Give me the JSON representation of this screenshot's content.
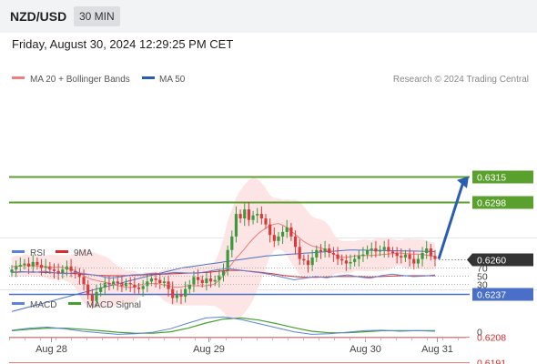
{
  "header": {
    "symbol": "NZD/USD",
    "timeframe": "30 MIN"
  },
  "datetime": "Friday, August 30, 2024 12:29:25 PM CET",
  "legend": {
    "bb_label": "MA 20 + Bollinger Bands",
    "ma50_label": "MA 50",
    "credit": "Research © 2024 Trading Central"
  },
  "colors": {
    "candle_up": "#3c9a3c",
    "candle_down": "#d93a3a",
    "ma20": "#ef7d7d",
    "ma50": "#4a6fc9",
    "band_fill": "#fde2e2",
    "target_line": "#5aa02c",
    "pivot_line": "#4a6fc9",
    "support_line": "#ef7d7d",
    "price_tag": "#333333",
    "arrow": "#2a5db0",
    "rsi": "#5b84d9",
    "rsi_ma": "#d92b2b",
    "macd": "#5b84d9",
    "macd_signal": "#45a12b"
  },
  "chart_data": [
    {
      "type": "candlestick",
      "title": "NZD/USD 30 MIN",
      "x_ticks": [
        "Aug 28",
        "Aug 29",
        "Aug 30",
        "Aug 31"
      ],
      "ylim": [
        0.618,
        0.633
      ],
      "levels": [
        {
          "value": 0.6315,
          "label": "0.6315",
          "kind": "target"
        },
        {
          "value": 0.6298,
          "label": "0.6298",
          "kind": "target"
        },
        {
          "value": 0.626,
          "label": "0.6260",
          "kind": "last_price"
        },
        {
          "value": 0.6237,
          "label": "0.6237",
          "kind": "pivot"
        },
        {
          "value": 0.6208,
          "label": "0.6208",
          "kind": "support"
        },
        {
          "value": 0.6191,
          "label": "0.6191",
          "kind": "support"
        }
      ],
      "arrow": {
        "from": 0.626,
        "to": 0.6315,
        "direction": "up"
      },
      "series": [
        {
          "name": "Candles",
          "values": [
            0.6253,
            0.6255,
            0.6256,
            0.6257,
            0.6255,
            0.6258,
            0.6256,
            0.6254,
            0.6255,
            0.6253,
            0.6252,
            0.625,
            0.6253,
            0.6255,
            0.6252,
            0.625,
            0.6248,
            0.6243,
            0.6236,
            0.6232,
            0.6238,
            0.6241,
            0.6244,
            0.6243,
            0.6245,
            0.6244,
            0.6242,
            0.6244,
            0.6243,
            0.6241,
            0.624,
            0.6242,
            0.6245,
            0.6247,
            0.6246,
            0.6244,
            0.6245,
            0.624,
            0.6234,
            0.6236,
            0.6235,
            0.624,
            0.6243,
            0.6248,
            0.6246,
            0.6244,
            0.6247,
            0.6245,
            0.6246,
            0.6249,
            0.6252,
            0.6266,
            0.6275,
            0.629,
            0.6287,
            0.6293,
            0.6286,
            0.6289,
            0.629,
            0.6287,
            0.6283,
            0.6276,
            0.6272,
            0.6275,
            0.6278,
            0.6281,
            0.6275,
            0.6268,
            0.626,
            0.6259,
            0.6256,
            0.6261,
            0.6266,
            0.6265,
            0.6267,
            0.6264,
            0.6263,
            0.626,
            0.6259,
            0.6257,
            0.6258,
            0.626,
            0.6262,
            0.6263,
            0.6266,
            0.6267,
            0.6265,
            0.6266,
            0.6268,
            0.6265,
            0.6264,
            0.6262,
            0.6261,
            0.6263,
            0.626,
            0.6257,
            0.626,
            0.6264,
            0.6267,
            0.6262,
            0.626
          ]
        },
        {
          "name": "MA 20",
          "values": [
            0.6248,
            0.626,
            0.627,
            0.6268,
            0.6266,
            0.6262
          ]
        },
        {
          "name": "MA 50",
          "values": [
            0.6225,
            0.624,
            0.6254,
            0.6262,
            0.6266,
            0.6265
          ]
        }
      ]
    },
    {
      "type": "line",
      "title": "RSI",
      "ylim": [
        0,
        100
      ],
      "y_ticks": [
        70,
        50,
        30
      ],
      "series": [
        {
          "name": "RSI",
          "values": [
            59,
            60,
            58,
            61,
            57,
            55,
            58,
            54,
            50,
            44,
            47,
            52,
            53,
            56,
            55,
            58,
            57,
            56,
            60,
            65,
            67,
            64,
            60,
            57,
            52,
            46,
            40,
            44,
            48,
            45,
            49,
            52,
            47,
            44,
            50,
            54,
            51,
            48,
            49,
            52
          ]
        },
        {
          "name": "9MA",
          "values": [
            58,
            59,
            59,
            58,
            57,
            56,
            55,
            53,
            51,
            50,
            50,
            51,
            52,
            53,
            54,
            55,
            56,
            57,
            58,
            61,
            63,
            63,
            61,
            58,
            55,
            51,
            48,
            46,
            46,
            47,
            48,
            48,
            48,
            47,
            48,
            49,
            50,
            50,
            50,
            50
          ]
        }
      ]
    },
    {
      "type": "line",
      "title": "MACD",
      "y_ticks": [
        0
      ],
      "series": [
        {
          "name": "MACD",
          "values": [
            0.2,
            0.6,
            0.8,
            0.5,
            0.0,
            -0.3,
            -0.6,
            -0.5,
            -0.2,
            0.5,
            1.6,
            2.6,
            2.8,
            2.3,
            1.5,
            0.7,
            -0.1,
            -0.6,
            -0.5,
            -0.2,
            0.1,
            0.2,
            0.0,
            0.1,
            0.0
          ]
        },
        {
          "name": "MACD Signal",
          "values": [
            0.1,
            0.4,
            0.6,
            0.6,
            0.4,
            0.1,
            -0.2,
            -0.4,
            -0.4,
            -0.1,
            0.6,
            1.6,
            2.4,
            2.6,
            2.2,
            1.5,
            0.7,
            0.0,
            -0.3,
            -0.3,
            -0.1,
            0.1,
            0.1,
            0.1,
            0.1
          ]
        }
      ]
    }
  ]
}
